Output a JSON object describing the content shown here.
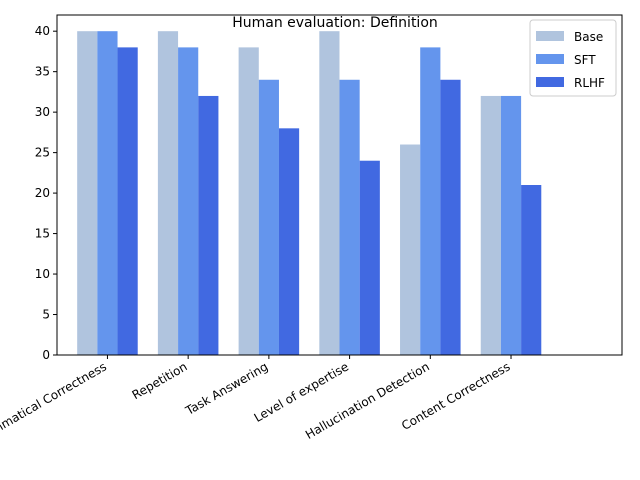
{
  "chart_data": {
    "type": "bar",
    "title": "Human evaluation: Definition",
    "xlabel": "",
    "ylabel": "",
    "ylim": [
      0,
      42
    ],
    "yticks": [
      0,
      5,
      10,
      15,
      20,
      25,
      30,
      35,
      40
    ],
    "categories": [
      "Grammatical Correctness",
      "Repetition",
      "Task Answering",
      "Level of expertise",
      "Hallucination Detection",
      "Content Correctness"
    ],
    "series": [
      {
        "name": "Base",
        "color": "#b0c4de",
        "values": [
          40,
          40,
          38,
          40,
          26,
          32
        ]
      },
      {
        "name": "SFT",
        "color": "#6495ed",
        "values": [
          40,
          38,
          34,
          34,
          38,
          32
        ]
      },
      {
        "name": "RLHF",
        "color": "#4169e1",
        "values": [
          38,
          32,
          28,
          24,
          34,
          21
        ]
      }
    ],
    "grid": false,
    "legend_position": "top-right",
    "x_tick_rotation": 30
  }
}
